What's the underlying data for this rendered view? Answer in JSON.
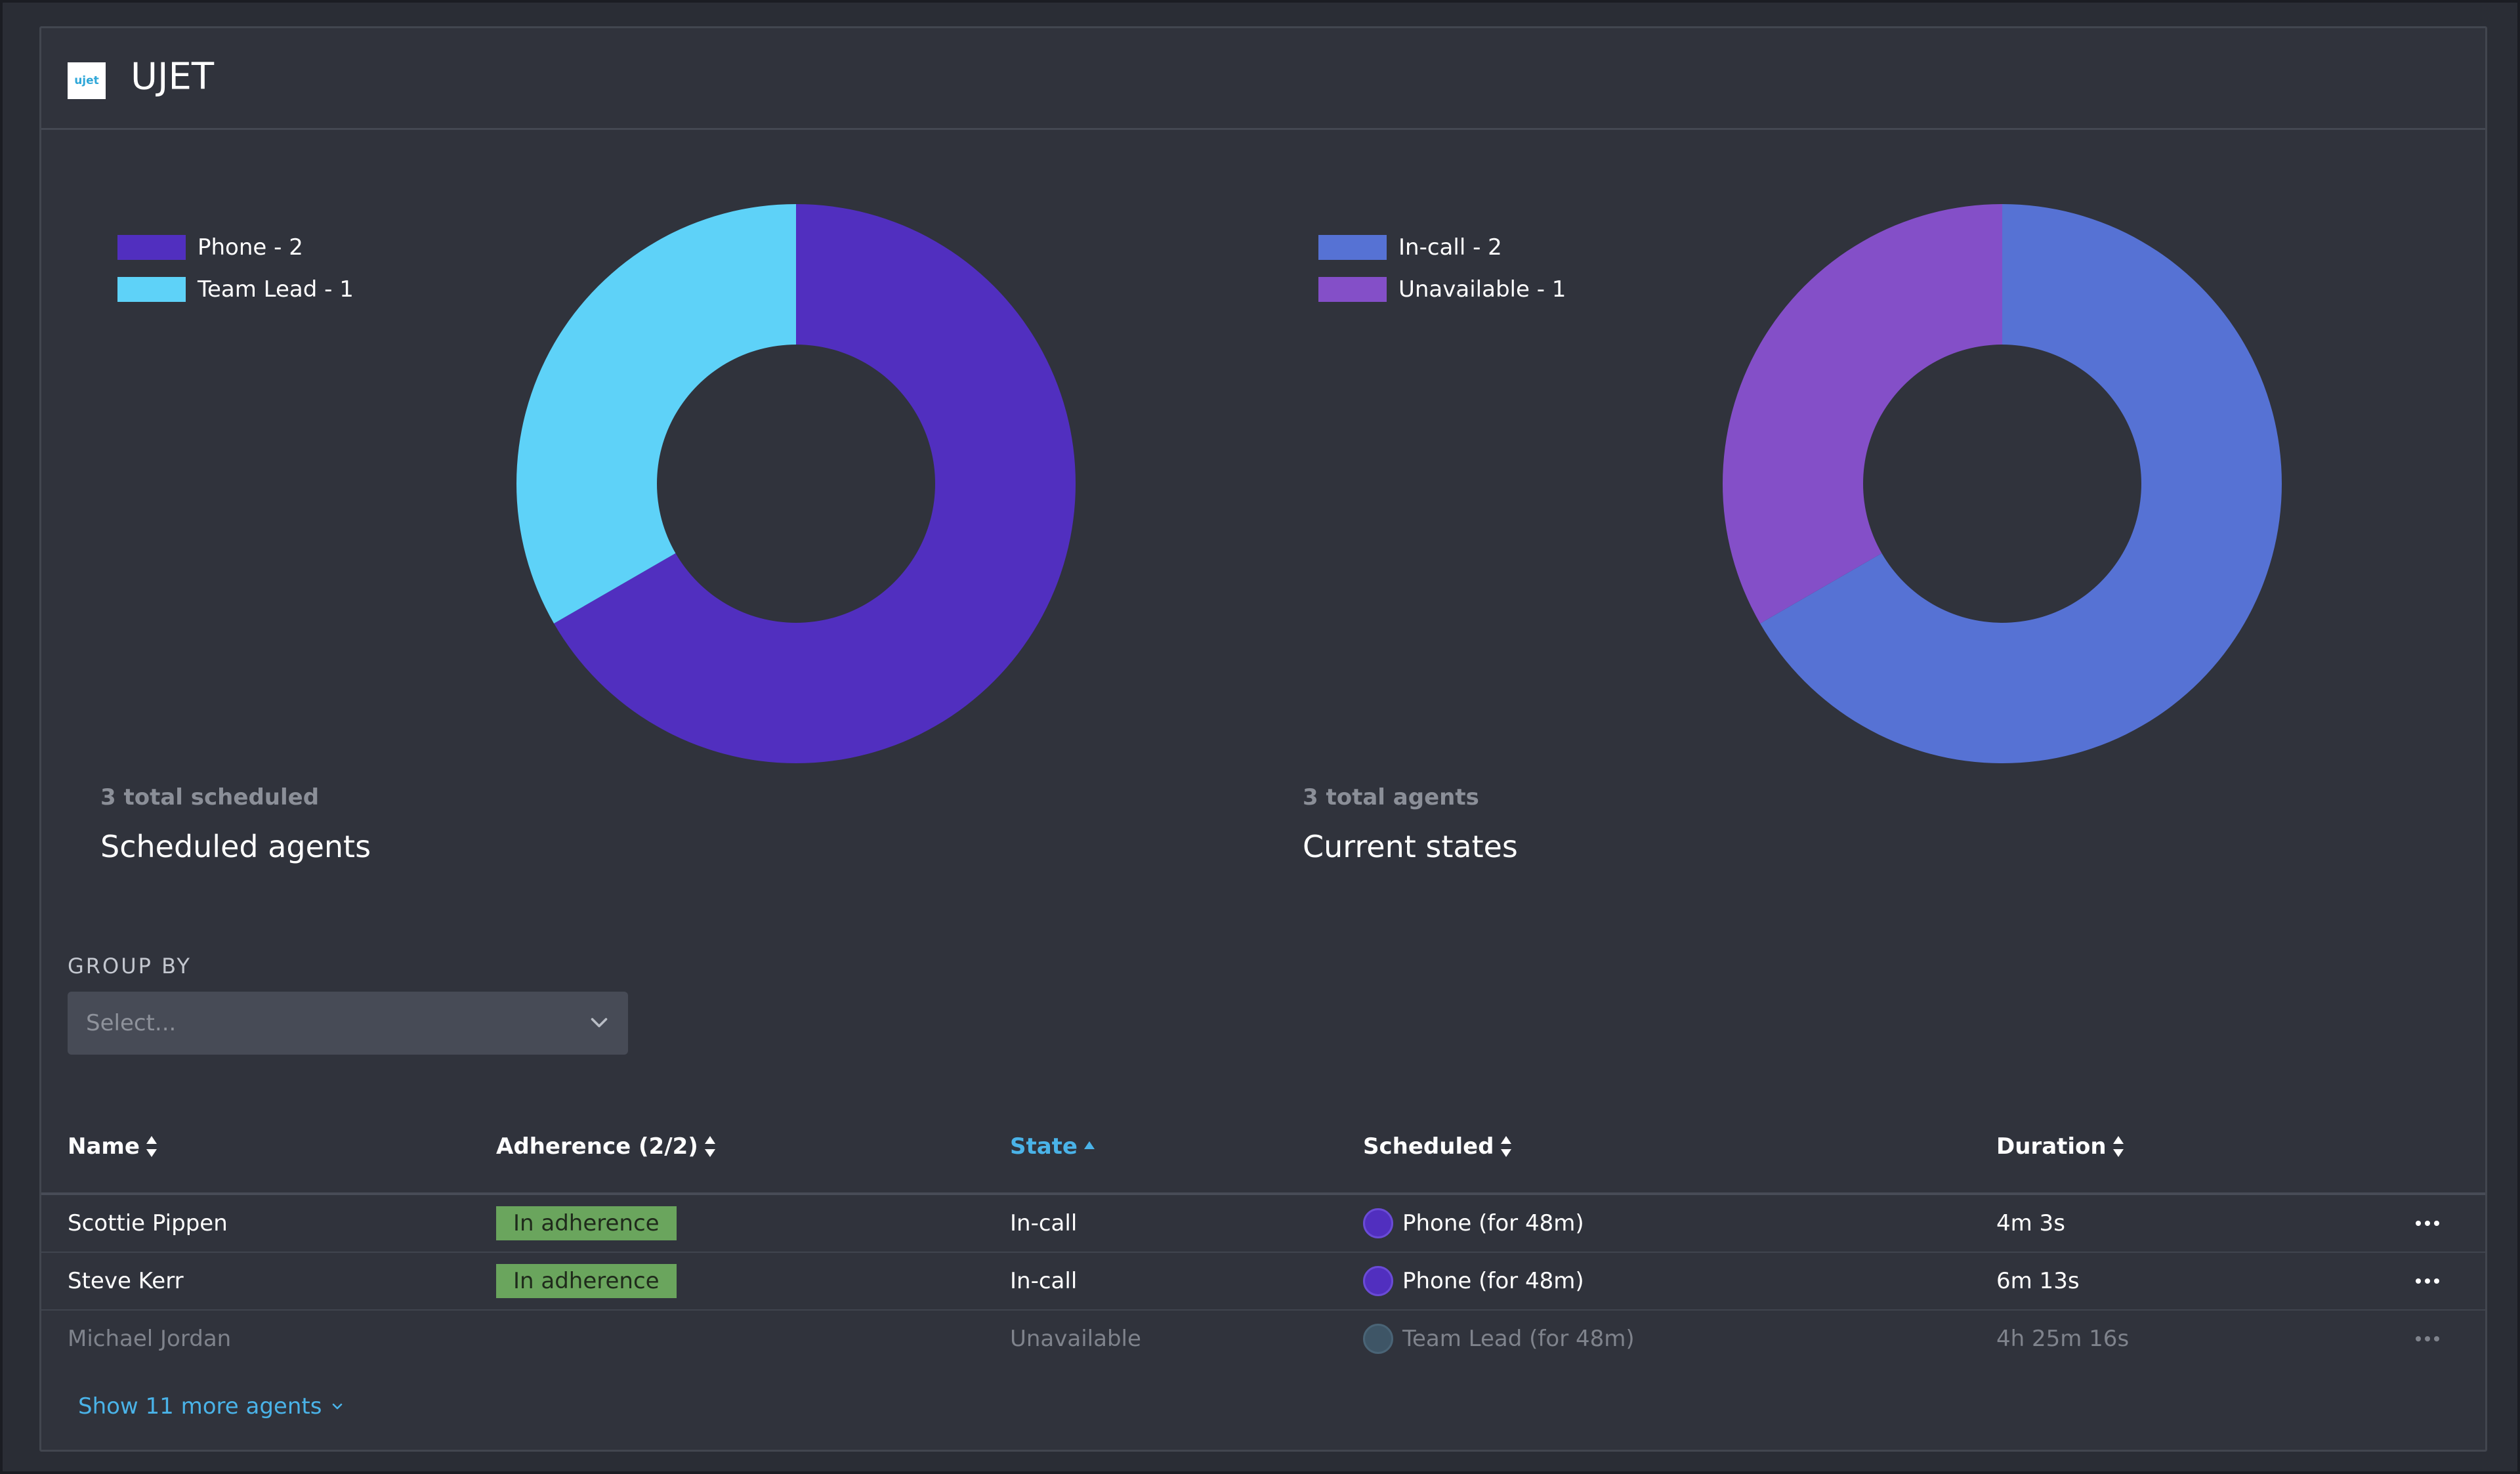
{
  "app": {
    "logo_text": "ujet",
    "title": "UJET"
  },
  "colors": {
    "phone": "#512fbf",
    "team_lead": "#5ed2f8",
    "in_call": "#5672d4",
    "unavailable": "#844fc8",
    "adherence_badge": "#6aa55d",
    "link": "#4ab3e8"
  },
  "chart_data": [
    {
      "type": "pie",
      "subtitle": "3 total scheduled",
      "title": "Scheduled agents",
      "categories": [
        "Phone",
        "Team Lead"
      ],
      "values": [
        2,
        1
      ],
      "legend_labels": [
        "Phone - 2",
        "Team Lead - 1"
      ],
      "colors": [
        "#512fbf",
        "#5ed2f8"
      ],
      "legend": "top-left"
    },
    {
      "type": "pie",
      "subtitle": "3 total agents",
      "title": "Current states",
      "categories": [
        "In-call",
        "Unavailable"
      ],
      "values": [
        2,
        1
      ],
      "legend_labels": [
        "In-call - 2",
        "Unavailable - 1"
      ],
      "colors": [
        "#5672d4",
        "#844fc8"
      ],
      "legend": "top-left"
    }
  ],
  "group_by": {
    "label": "GROUP BY",
    "placeholder": "Select..."
  },
  "table": {
    "columns": {
      "name": "Name",
      "adherence": "Adherence (2/2)",
      "state": "State",
      "scheduled": "Scheduled",
      "duration": "Duration"
    },
    "rows": [
      {
        "name": "Scottie Pippen",
        "adherence": "In adherence",
        "state": "In-call",
        "scheduled": "Phone (for 48m)",
        "duration": "4m 3s"
      },
      {
        "name": "Steve Kerr",
        "adherence": "In adherence",
        "state": "In-call",
        "scheduled": "Phone (for 48m)",
        "duration": "6m 13s"
      },
      {
        "name": "Michael Jordan",
        "adherence": "",
        "state": "Unavailable",
        "scheduled": "Team Lead (for 48m)",
        "duration": "4h 25m 16s"
      }
    ]
  },
  "show_more": {
    "label": "Show 11 more agents"
  }
}
